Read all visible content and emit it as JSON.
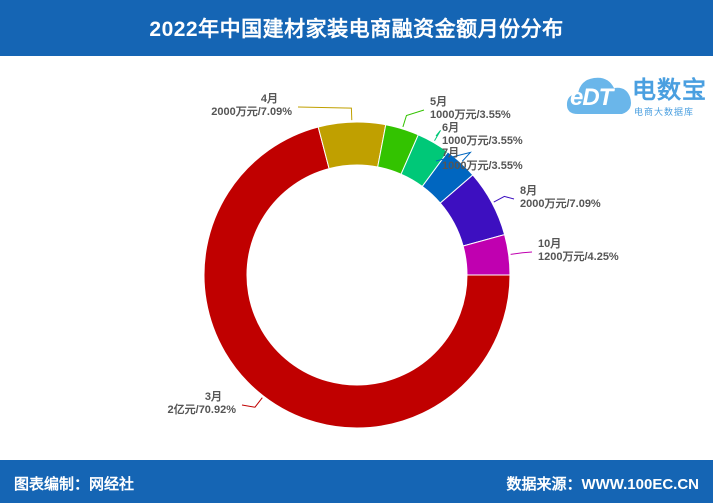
{
  "header": {
    "title": "2022年中国建材家装电商融资金额月份分布"
  },
  "footer": {
    "left": "图表编制：网经社",
    "right": "数据来源：WWW.100EC.CN"
  },
  "logo": {
    "mark": "eDT",
    "name": "电数宝",
    "tagline": "电商大数据库",
    "icon": "cloud-icon"
  },
  "colors": {
    "header_bg": "#1565b4",
    "3月": "#c00000",
    "4月": "#c0a000",
    "5月": "#33c300",
    "6月": "#00c878",
    "7月": "#0066c0",
    "8月": "#3d0fc0",
    "10月": "#c000b0"
  },
  "chart_data": {
    "type": "pie",
    "variant": "donut",
    "title": "2022年中国建材家装电商融资金额月份分布",
    "slices": [
      {
        "month": "3月",
        "amount_label": "2亿元",
        "percent": 70.92,
        "percent_label": "70.92%",
        "color": "#c00000"
      },
      {
        "month": "4月",
        "amount_label": "2000万元",
        "percent": 7.09,
        "percent_label": "7.09%",
        "color": "#c0a000"
      },
      {
        "month": "5月",
        "amount_label": "1000万元",
        "percent": 3.55,
        "percent_label": "3.55%",
        "color": "#33c300"
      },
      {
        "month": "6月",
        "amount_label": "1000万元",
        "percent": 3.55,
        "percent_label": "3.55%",
        "color": "#00c878"
      },
      {
        "month": "7月",
        "amount_label": "1000万元",
        "percent": 3.55,
        "percent_label": "3.55%",
        "color": "#0066c0"
      },
      {
        "month": "8月",
        "amount_label": "2000万元",
        "percent": 7.09,
        "percent_label": "7.09%",
        "color": "#3d0fc0"
      },
      {
        "month": "10月",
        "amount_label": "1200万元",
        "percent": 4.25,
        "percent_label": "4.25%",
        "color": "#c000b0"
      }
    ]
  }
}
